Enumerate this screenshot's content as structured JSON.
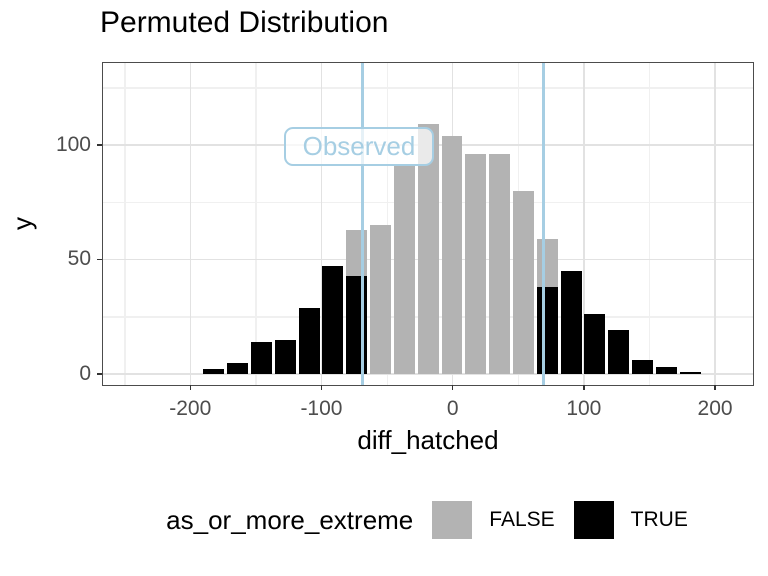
{
  "chart_data": {
    "type": "bar",
    "subtype": "histogram-stacked",
    "title": "Permuted Distribution",
    "xlabel": "diff_hatched",
    "ylabel": "y",
    "xlim": [
      -266.5,
      228.9
    ],
    "ylim": [
      -4.8,
      135.8
    ],
    "x_major_ticks": [
      -200,
      -100,
      0,
      100,
      200
    ],
    "x_tick_labels": [
      "-200",
      "-100",
      "0",
      "100",
      "200"
    ],
    "x_minor_gridlines": [
      -250,
      -150,
      -50,
      50,
      150
    ],
    "y_major_ticks": [
      0,
      50,
      100
    ],
    "y_tick_labels": [
      "0",
      "50",
      "100"
    ],
    "y_minor_gridlines": [
      25,
      75,
      125
    ],
    "grid": true,
    "binwidth": 18.15,
    "bins": [
      {
        "center": -182.0,
        "count_false": 0,
        "count_true": 2
      },
      {
        "center": -163.9,
        "count_false": 0,
        "count_true": 5
      },
      {
        "center": -145.7,
        "count_false": 0,
        "count_true": 14
      },
      {
        "center": -127.6,
        "count_false": 0,
        "count_true": 15
      },
      {
        "center": -109.4,
        "count_false": 0,
        "count_true": 29
      },
      {
        "center": -91.3,
        "count_false": 0,
        "count_true": 47
      },
      {
        "center": -73.1,
        "count_false": 20,
        "count_true": 43
      },
      {
        "center": -55.0,
        "count_false": 65,
        "count_true": 0
      },
      {
        "center": -36.8,
        "count_false": 91,
        "count_true": 0
      },
      {
        "center": -18.7,
        "count_false": 109,
        "count_true": 0
      },
      {
        "center": -0.5,
        "count_false": 104,
        "count_true": 0
      },
      {
        "center": 17.7,
        "count_false": 96,
        "count_true": 0
      },
      {
        "center": 35.8,
        "count_false": 96,
        "count_true": 0
      },
      {
        "center": 54.0,
        "count_false": 80,
        "count_true": 0
      },
      {
        "center": 72.1,
        "count_false": 21,
        "count_true": 38
      },
      {
        "center": 90.3,
        "count_false": 0,
        "count_true": 45
      },
      {
        "center": 108.4,
        "count_false": 0,
        "count_true": 26
      },
      {
        "center": 126.6,
        "count_false": 0,
        "count_true": 19
      },
      {
        "center": 144.7,
        "count_false": 0,
        "count_true": 6
      },
      {
        "center": 162.9,
        "count_false": 0,
        "count_true": 3
      },
      {
        "center": 181.0,
        "count_false": 0,
        "count_true": 1
      }
    ],
    "vlines": {
      "x": [
        -69,
        69
      ],
      "color": "#a6cee3"
    },
    "annotation": {
      "text": "Observed",
      "color": "#a6cee3"
    },
    "legend_title": "as_or_more_extreme",
    "legend": [
      {
        "label": "FALSE",
        "color": "#b3b3b3"
      },
      {
        "label": "TRUE",
        "color": "#000000"
      }
    ],
    "legend_position": "bottom",
    "colors": {
      "bar_false": "#b3b3b3",
      "bar_true": "#000000",
      "cutoff_line": "#a6cee3",
      "grid_major": "#e2e2e2",
      "grid_minor": "#f0f0f0",
      "panel_border": "#4c4c4c",
      "tick_label": "#4d4d4d"
    }
  }
}
